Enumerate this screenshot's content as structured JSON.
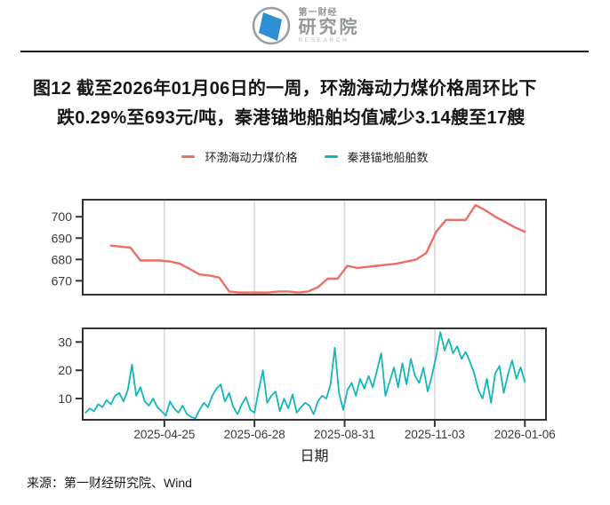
{
  "header": {
    "logo": {
      "top": "第一财经",
      "main": "研究院",
      "sub": "RESEARCH"
    }
  },
  "figure_title": {
    "line1": "图12 截至2026年01月06日的一周，环渤海动力煤价格周环比下",
    "line2": "跌0.29%至693元/吨，秦港锚地船舶均值减少3.14艘至17艘"
  },
  "legend": [
    {
      "label": "环渤海动力煤价格",
      "color": "#ee6e65"
    },
    {
      "label": "秦港锚地船舶数",
      "color": "#13b6b9"
    }
  ],
  "x_axis": {
    "label": "日期",
    "tick_labels": [
      "2025-04-25",
      "2025-06-28",
      "2025-08-31",
      "2025-11-03",
      "2026-01-06"
    ],
    "domain": [
      "2025-02-26",
      "2026-01-21"
    ]
  },
  "source": "来源：第一财经研究院、Wind",
  "colors": {
    "price_line": "#ee6e65",
    "ship_line": "#13b6b9",
    "grid": "#d8d8d8",
    "border": "#333333",
    "logo_blue": "#2e8fd5",
    "logo_gray": "#98a0a4"
  },
  "chart_data": [
    {
      "type": "line",
      "name": "环渤海动力煤价格",
      "unit": "元/吨",
      "color": "#ee6e65",
      "x_start": "2025-03-18",
      "x_interval_days": 7,
      "ylim": [
        663.5,
        708
      ],
      "yticks": [
        670,
        680,
        690,
        700
      ],
      "grid": "vertical",
      "values": [
        686.5,
        686,
        685.5,
        679.5,
        679.5,
        679.5,
        679,
        678,
        675.5,
        673,
        672.5,
        671.5,
        665,
        664.5,
        664.5,
        664.5,
        664.5,
        665,
        665,
        664.5,
        665,
        667,
        671,
        671,
        677,
        676,
        676.5,
        677,
        677.5,
        678,
        679,
        680,
        683,
        693,
        698.5,
        698.5,
        698.5,
        705.5,
        703,
        700,
        697.5,
        695,
        693
      ]
    },
    {
      "type": "line",
      "name": "秦港锚地船舶数",
      "unit": "艘",
      "color": "#13b6b9",
      "x_start": "2025-02-28",
      "x_interval_days": 3,
      "ylim": [
        2.5,
        34.8
      ],
      "yticks": [
        10,
        20,
        30
      ],
      "grid": "vertical",
      "values": [
        5,
        6.5,
        5.5,
        8,
        7,
        9.5,
        8,
        11,
        12,
        9,
        13,
        22,
        11,
        14,
        9,
        7.5,
        10,
        7,
        5.5,
        4,
        9,
        6.5,
        5,
        7.5,
        4.5,
        3.5,
        3,
        6,
        8.5,
        7,
        11,
        13.5,
        15,
        9,
        12,
        7,
        4.5,
        8,
        10.5,
        6,
        5,
        13,
        20,
        8.5,
        11,
        12.5,
        5.5,
        10,
        6.5,
        11.5,
        5,
        7,
        8.5,
        7.5,
        4.5,
        9,
        11,
        10,
        15,
        28,
        12,
        6,
        13,
        15.5,
        11,
        17,
        13.5,
        18,
        14,
        20,
        26,
        11,
        16,
        21,
        14,
        22.5,
        15,
        24,
        18,
        15.5,
        21,
        12.5,
        18,
        25,
        33.5,
        27,
        31,
        26,
        28.5,
        24,
        26.5,
        23,
        19,
        13,
        10,
        17,
        8.5,
        19,
        21.5,
        12,
        18.5,
        23.5,
        17,
        21,
        16
      ]
    }
  ]
}
